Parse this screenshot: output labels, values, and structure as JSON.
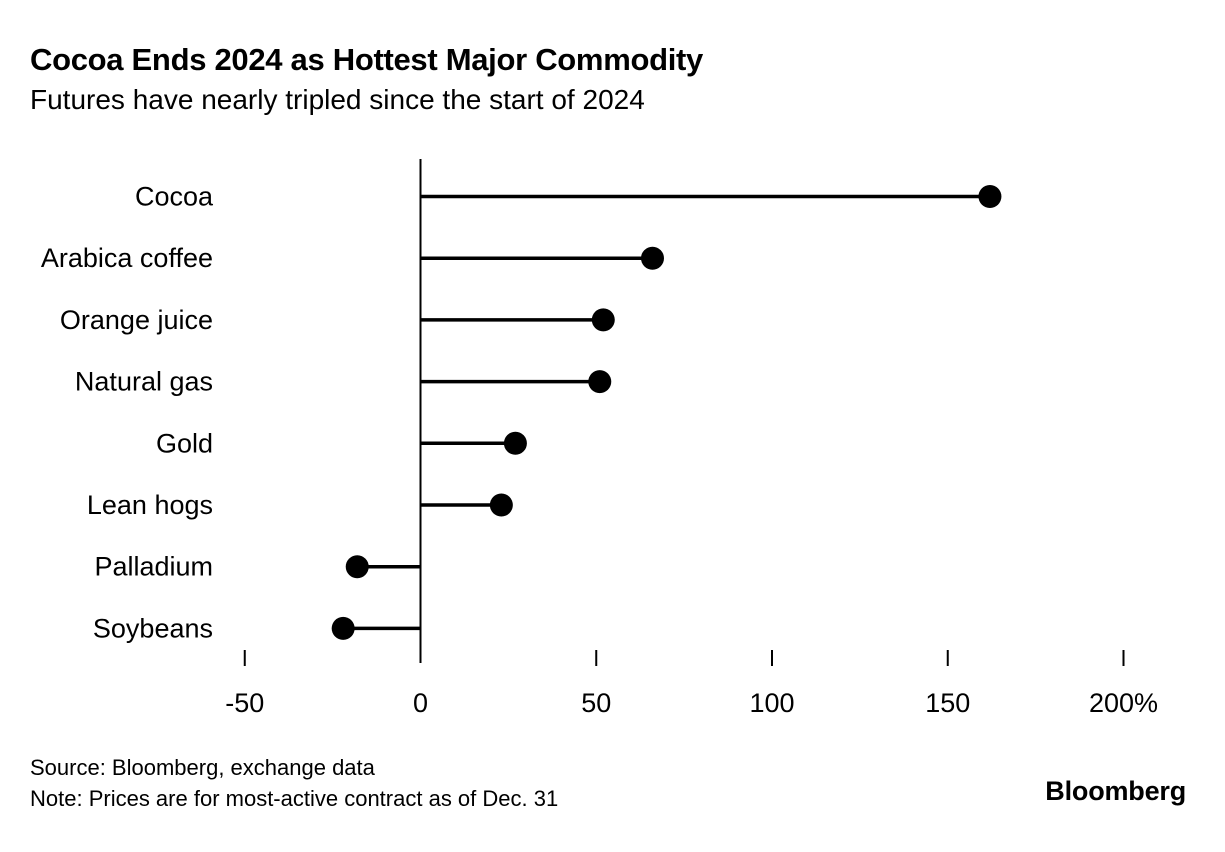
{
  "header": {
    "title": "Cocoa Ends 2024 as Hottest Major Commodity",
    "subtitle": "Futures have nearly tripled since the start of 2024"
  },
  "chart_data": {
    "type": "bar",
    "variant": "lollipop",
    "orientation": "horizontal",
    "title": "Cocoa Ends 2024 as Hottest Major Commodity",
    "subtitle": "Futures have nearly tripled since the start of 2024",
    "categories": [
      "Cocoa",
      "Arabica coffee",
      "Orange juice",
      "Natural gas",
      "Gold",
      "Lean hogs",
      "Palladium",
      "Soybeans"
    ],
    "values": [
      162,
      66,
      52,
      51,
      27,
      23,
      -18,
      -22
    ],
    "unit": "%",
    "xlabel": "",
    "ylabel": "",
    "xlim": [
      -50,
      200
    ],
    "grid": false,
    "legend": "none",
    "axis_ticks": [
      {
        "value": -50,
        "label": "-50"
      },
      {
        "value": 0,
        "label": "0"
      },
      {
        "value": 50,
        "label": "50"
      },
      {
        "value": 100,
        "label": "100"
      },
      {
        "value": 150,
        "label": "150"
      },
      {
        "value": 200,
        "label": "200%"
      }
    ],
    "colors": {
      "background": "#ffffff",
      "axis": "#000000",
      "stem": "#000000",
      "dot": "#000000",
      "text": "#000000"
    }
  },
  "footer": {
    "source": "Source: Bloomberg, exchange data",
    "note": "Note: Prices are for most-active contract as of Dec. 31",
    "logo": "Bloomberg"
  }
}
